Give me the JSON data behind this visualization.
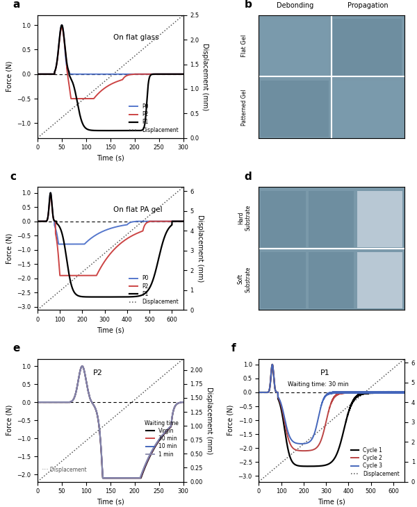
{
  "panel_a": {
    "title": "On flat glass",
    "xlim": [
      0,
      300
    ],
    "ylim_force": [
      -1.3,
      1.2
    ],
    "ylim_disp": [
      0,
      2.5
    ],
    "annotation": "a"
  },
  "panel_c": {
    "title": "On flat PA gel",
    "xlim": [
      0,
      650
    ],
    "ylim_force": [
      -3.1,
      1.2
    ],
    "ylim_disp": [
      0,
      6.2
    ],
    "annotation": "c"
  },
  "panel_e": {
    "title": "P2",
    "xlim": [
      0,
      300
    ],
    "ylim_force": [
      -2.2,
      1.2
    ],
    "ylim_disp": [
      0,
      2.2
    ],
    "annotation": "e",
    "legend_title": "Waiting time"
  },
  "panel_f": {
    "title": "P1",
    "subtitle": "Waiting time: 30 min",
    "xlim": [
      0,
      650
    ],
    "ylim_force": [
      -3.2,
      1.2
    ],
    "ylim_disp": [
      0,
      6.2
    ],
    "annotation": "f"
  },
  "colors": {
    "P0": "#5577CC",
    "P2": "#CC4444",
    "P1": "#000000",
    "Virgin": "#000000",
    "30min": "#CC4444",
    "10min": "#4466BB",
    "1min": "#8888AA",
    "Cycle1": "#000000",
    "Cycle2": "#BB4444",
    "Cycle3": "#4466BB",
    "disp": "#555555"
  }
}
